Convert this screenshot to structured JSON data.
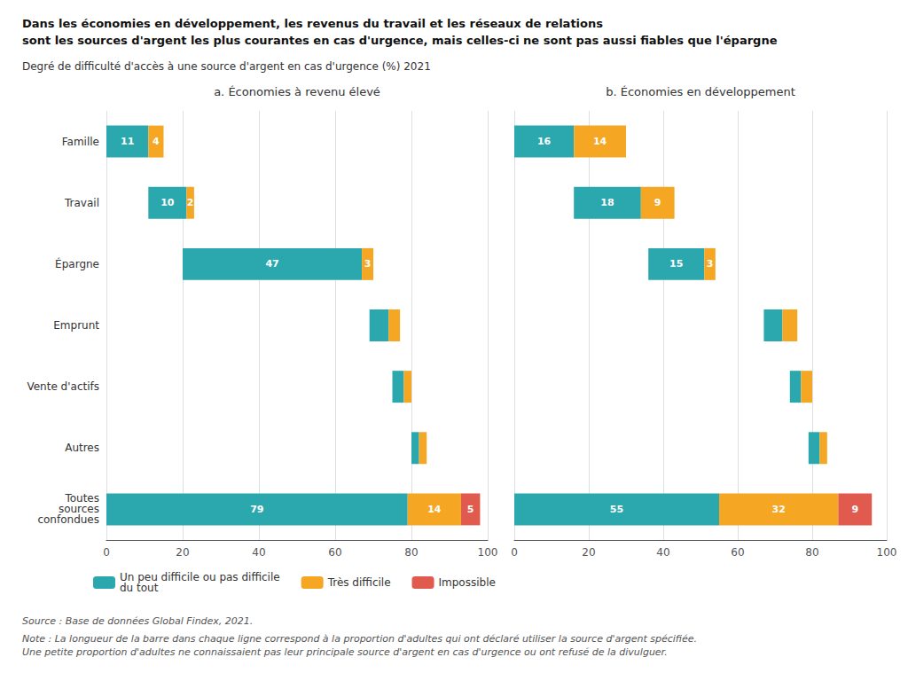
{
  "title": "Dans les économies en développement, les revenus du travail et les réseaux de relations\nsont les sources d'argent les plus courantes en cas d'urgence, mais celles-ci ne sont pas aussi fiables que l'épargne",
  "subtitle": "Degré de difficulté d'accès à une source d'argent en cas d'urgence (%) 2021",
  "annotations": [
    "Source : Base de données Global Findex, 2021.",
    "Note : La longueur de la barre dans chaque ligne correspond à la proportion d'adultes qui ont déclaré utiliser la source d'argent spécifiée.\nUne petite proportion d'adultes ne connaissaient pas leur principale source d'argent en cas d'urgence ou ont refusé de la divulguer."
  ],
  "legend": "lower left",
  "chart_data": [
    {
      "type": "bar",
      "title": "a. Économies à revenu élevé",
      "orientation": "horizontal",
      "stacked": true,
      "data_labels": true,
      "grid": true,
      "categories": [
        "Famille",
        "Travail",
        "Épargne",
        "Emprunt",
        "Vente d'actifs",
        "Autres",
        "Toutes\nsources\nconfondues"
      ],
      "offsets": [
        0,
        11,
        20,
        69,
        75,
        80,
        0
      ],
      "series": [
        {
          "name": "Un peu difficile ou pas difficile\ndu tout",
          "color": "#2AA8AD",
          "values": [
            11,
            10,
            47,
            5,
            3,
            2,
            79
          ],
          "value_labels": [
            "11",
            "10",
            "47",
            null,
            null,
            null,
            "79"
          ]
        },
        {
          "name": "Très difficile",
          "color": "#F5A623",
          "values": [
            4,
            2,
            3,
            3,
            2,
            2,
            14
          ],
          "value_labels": [
            "4",
            "2",
            "3",
            null,
            null,
            null,
            "14"
          ]
        },
        {
          "name": "Impossible",
          "color": "#E05A4E",
          "values": [
            0,
            0,
            0,
            0,
            0,
            0,
            5
          ],
          "value_labels": [
            null,
            null,
            null,
            null,
            null,
            null,
            "5"
          ]
        }
      ],
      "xlim": [
        0,
        100
      ],
      "xticks": [
        0,
        20,
        40,
        60,
        80,
        100
      ]
    },
    {
      "type": "bar",
      "title": "b. Économies en développement",
      "orientation": "horizontal",
      "stacked": true,
      "data_labels": true,
      "grid": true,
      "tick_labels": "x",
      "categories": [
        "Famille",
        "Travail",
        "Épargne",
        "Emprunt",
        "Vente d'actifs",
        "Autres",
        "Toutes\nsources\nconfondues"
      ],
      "offsets": [
        0,
        16,
        36,
        67,
        74,
        79,
        0
      ],
      "series": [
        {
          "name": "Un peu difficile ou pas difficile\ndu tout",
          "color": "#2AA8AD",
          "values": [
            16,
            18,
            15,
            5,
            3,
            3,
            55
          ],
          "value_labels": [
            "16",
            "18",
            "15",
            null,
            null,
            null,
            "55"
          ]
        },
        {
          "name": "Très difficile",
          "color": "#F5A623",
          "values": [
            14,
            9,
            3,
            4,
            3,
            2,
            32
          ],
          "value_labels": [
            "14",
            "9",
            "3",
            null,
            null,
            null,
            "32"
          ]
        },
        {
          "name": "Impossible",
          "color": "#E05A4E",
          "values": [
            0,
            0,
            0,
            0,
            0,
            0,
            9
          ],
          "value_labels": [
            null,
            null,
            null,
            null,
            null,
            null,
            "9"
          ]
        }
      ],
      "xlim": [
        0,
        100
      ],
      "xticks": [
        0,
        20,
        40,
        60,
        80,
        100
      ]
    }
  ]
}
